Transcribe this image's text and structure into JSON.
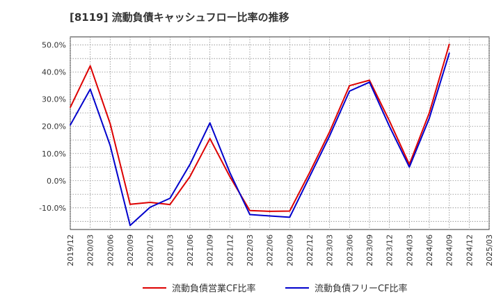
{
  "chart_data": {
    "type": "line",
    "title": "[8119]  流動負債キャッシュフロー比率の推移",
    "xlabel": "",
    "ylabel": "",
    "x": [
      "2019/12",
      "2020/03",
      "2020/06",
      "2020/09",
      "2020/12",
      "2021/03",
      "2021/06",
      "2021/09",
      "2021/12",
      "2022/03",
      "2022/06",
      "2022/09",
      "2022/12",
      "2023/03",
      "2023/06",
      "2023/09",
      "2023/12",
      "2024/03",
      "2024/06",
      "2024/09",
      "2024/12",
      "2025/03"
    ],
    "ylim": [
      -18,
      53
    ],
    "yticks": [
      -10,
      0,
      10,
      20,
      30,
      40,
      50
    ],
    "ytick_labels": [
      "-10.0%",
      "0.0%",
      "10.0%",
      "20.0%",
      "30.0%",
      "40.0%",
      "50.0%"
    ],
    "grid": true,
    "legend_position": "bottom",
    "series": [
      {
        "name": "流動負債営業CF比率",
        "color": "#dd0000",
        "points": [
          {
            "x": "2019/12",
            "y": 27.0
          },
          {
            "x": "2020/03",
            "y": 42.3
          },
          {
            "x": "2020/06",
            "y": 21.0
          },
          {
            "x": "2020/09",
            "y": -8.7
          },
          {
            "x": "2020/12",
            "y": -8.0
          },
          {
            "x": "2021/03",
            "y": -8.8
          },
          {
            "x": "2021/06",
            "y": 1.5
          },
          {
            "x": "2021/09",
            "y": 15.5
          },
          {
            "x": "2021/12",
            "y": 1.5
          },
          {
            "x": "2022/03",
            "y": -11.0
          },
          {
            "x": "2022/06",
            "y": -11.3
          },
          {
            "x": "2022/09",
            "y": -11.2
          },
          {
            "x": "2022/12",
            "y": 3.0
          },
          {
            "x": "2023/03",
            "y": 18.0
          },
          {
            "x": "2023/06",
            "y": 35.0
          },
          {
            "x": "2023/09",
            "y": 37.0
          },
          {
            "x": "2023/12",
            "y": 22.0
          },
          {
            "x": "2024/03",
            "y": 6.0
          },
          {
            "x": "2024/06",
            "y": 25.0
          },
          {
            "x": "2024/09",
            "y": 50.3
          }
        ]
      },
      {
        "name": "流動負債フリーCF比率",
        "color": "#0000cc",
        "points": [
          {
            "x": "2019/12",
            "y": 20.5
          },
          {
            "x": "2020/03",
            "y": 33.7
          },
          {
            "x": "2020/06",
            "y": 13.0
          },
          {
            "x": "2020/09",
            "y": -16.5
          },
          {
            "x": "2020/12",
            "y": -9.8
          },
          {
            "x": "2021/03",
            "y": -6.5
          },
          {
            "x": "2021/06",
            "y": 6.0
          },
          {
            "x": "2021/09",
            "y": 21.3
          },
          {
            "x": "2021/12",
            "y": 3.0
          },
          {
            "x": "2022/03",
            "y": -12.5
          },
          {
            "x": "2022/06",
            "y": -13.0
          },
          {
            "x": "2022/09",
            "y": -13.5
          },
          {
            "x": "2022/12",
            "y": 1.5
          },
          {
            "x": "2023/03",
            "y": 16.5
          },
          {
            "x": "2023/06",
            "y": 33.0
          },
          {
            "x": "2023/09",
            "y": 36.3
          },
          {
            "x": "2023/12",
            "y": 20.0
          },
          {
            "x": "2024/03",
            "y": 5.0
          },
          {
            "x": "2024/06",
            "y": 23.0
          },
          {
            "x": "2024/09",
            "y": 47.0
          }
        ]
      }
    ]
  }
}
